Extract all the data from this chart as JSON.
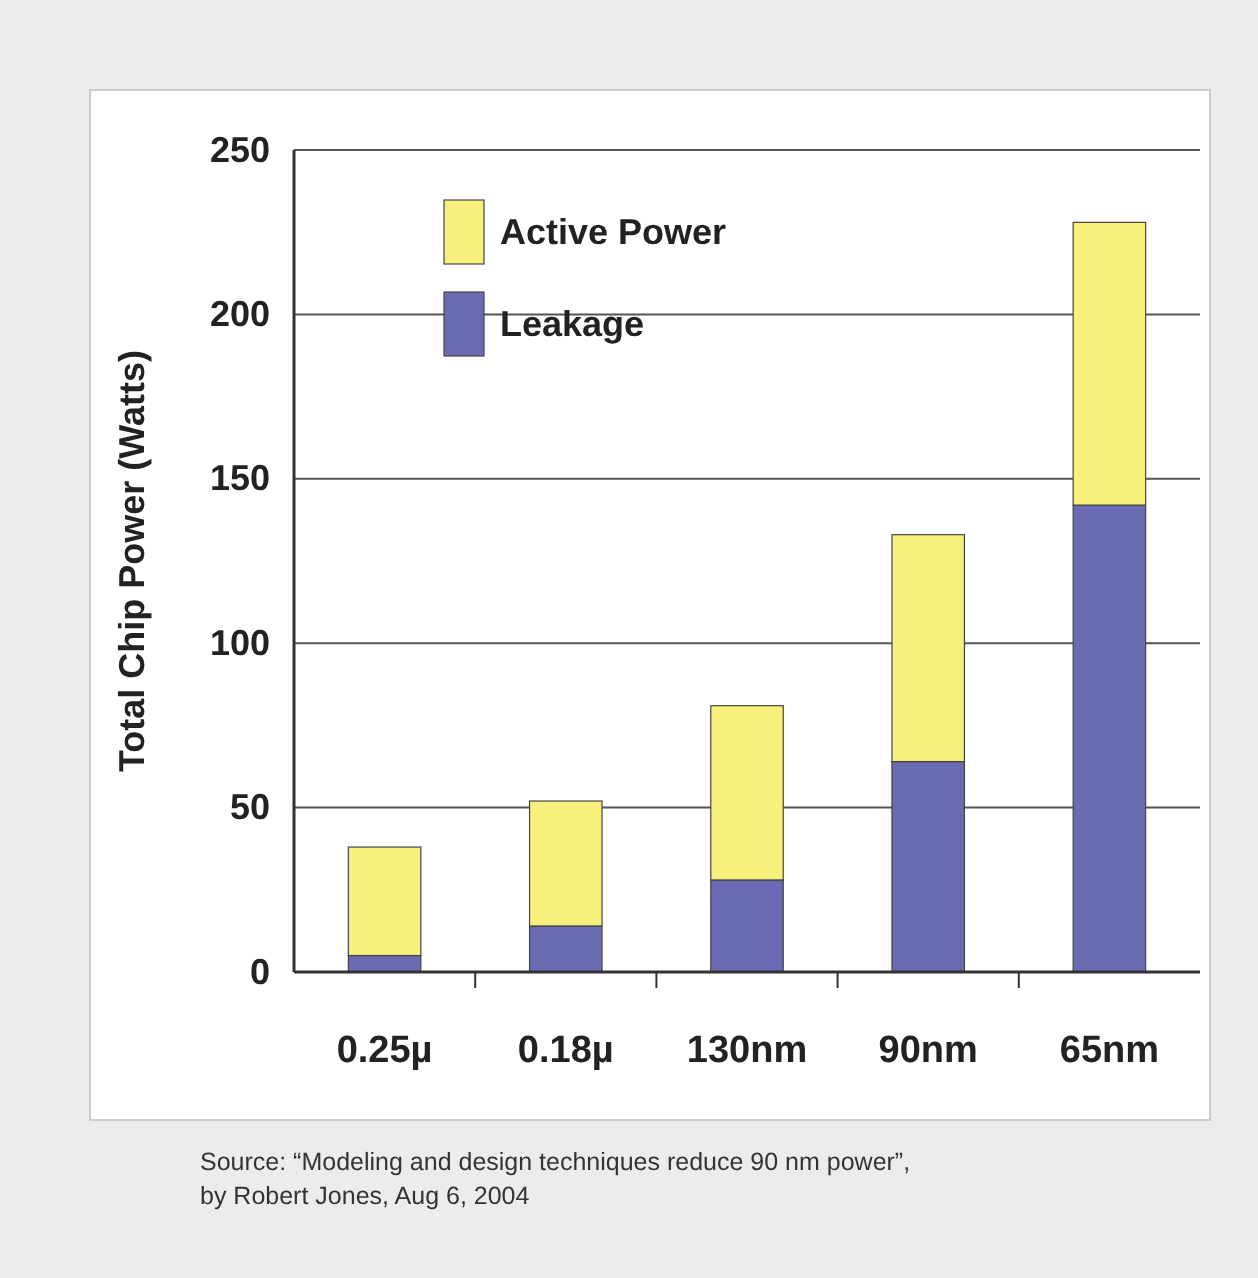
{
  "chart_data": {
    "type": "bar",
    "stacked": true,
    "ylabel": "Total Chip Power (Watts)",
    "categories": [
      "0.25µ",
      "0.18µ",
      "130nm",
      "90nm",
      "65nm"
    ],
    "series": [
      {
        "name": "Leakage",
        "color": "#6b6bb3",
        "values": [
          5,
          14,
          28,
          64,
          142
        ]
      },
      {
        "name": "Active Power",
        "color": "#f7f07c",
        "values": [
          33,
          38,
          53,
          69,
          86
        ]
      }
    ],
    "ylim": [
      0,
      250
    ],
    "yticks": [
      0,
      50,
      100,
      150,
      200,
      250
    ],
    "grid": "y",
    "legend": "top left",
    "annotations": [
      "Source: “Modeling and design techniques reduce 90 nm power”, by Robert Jones, Aug 6, 2004"
    ]
  }
}
